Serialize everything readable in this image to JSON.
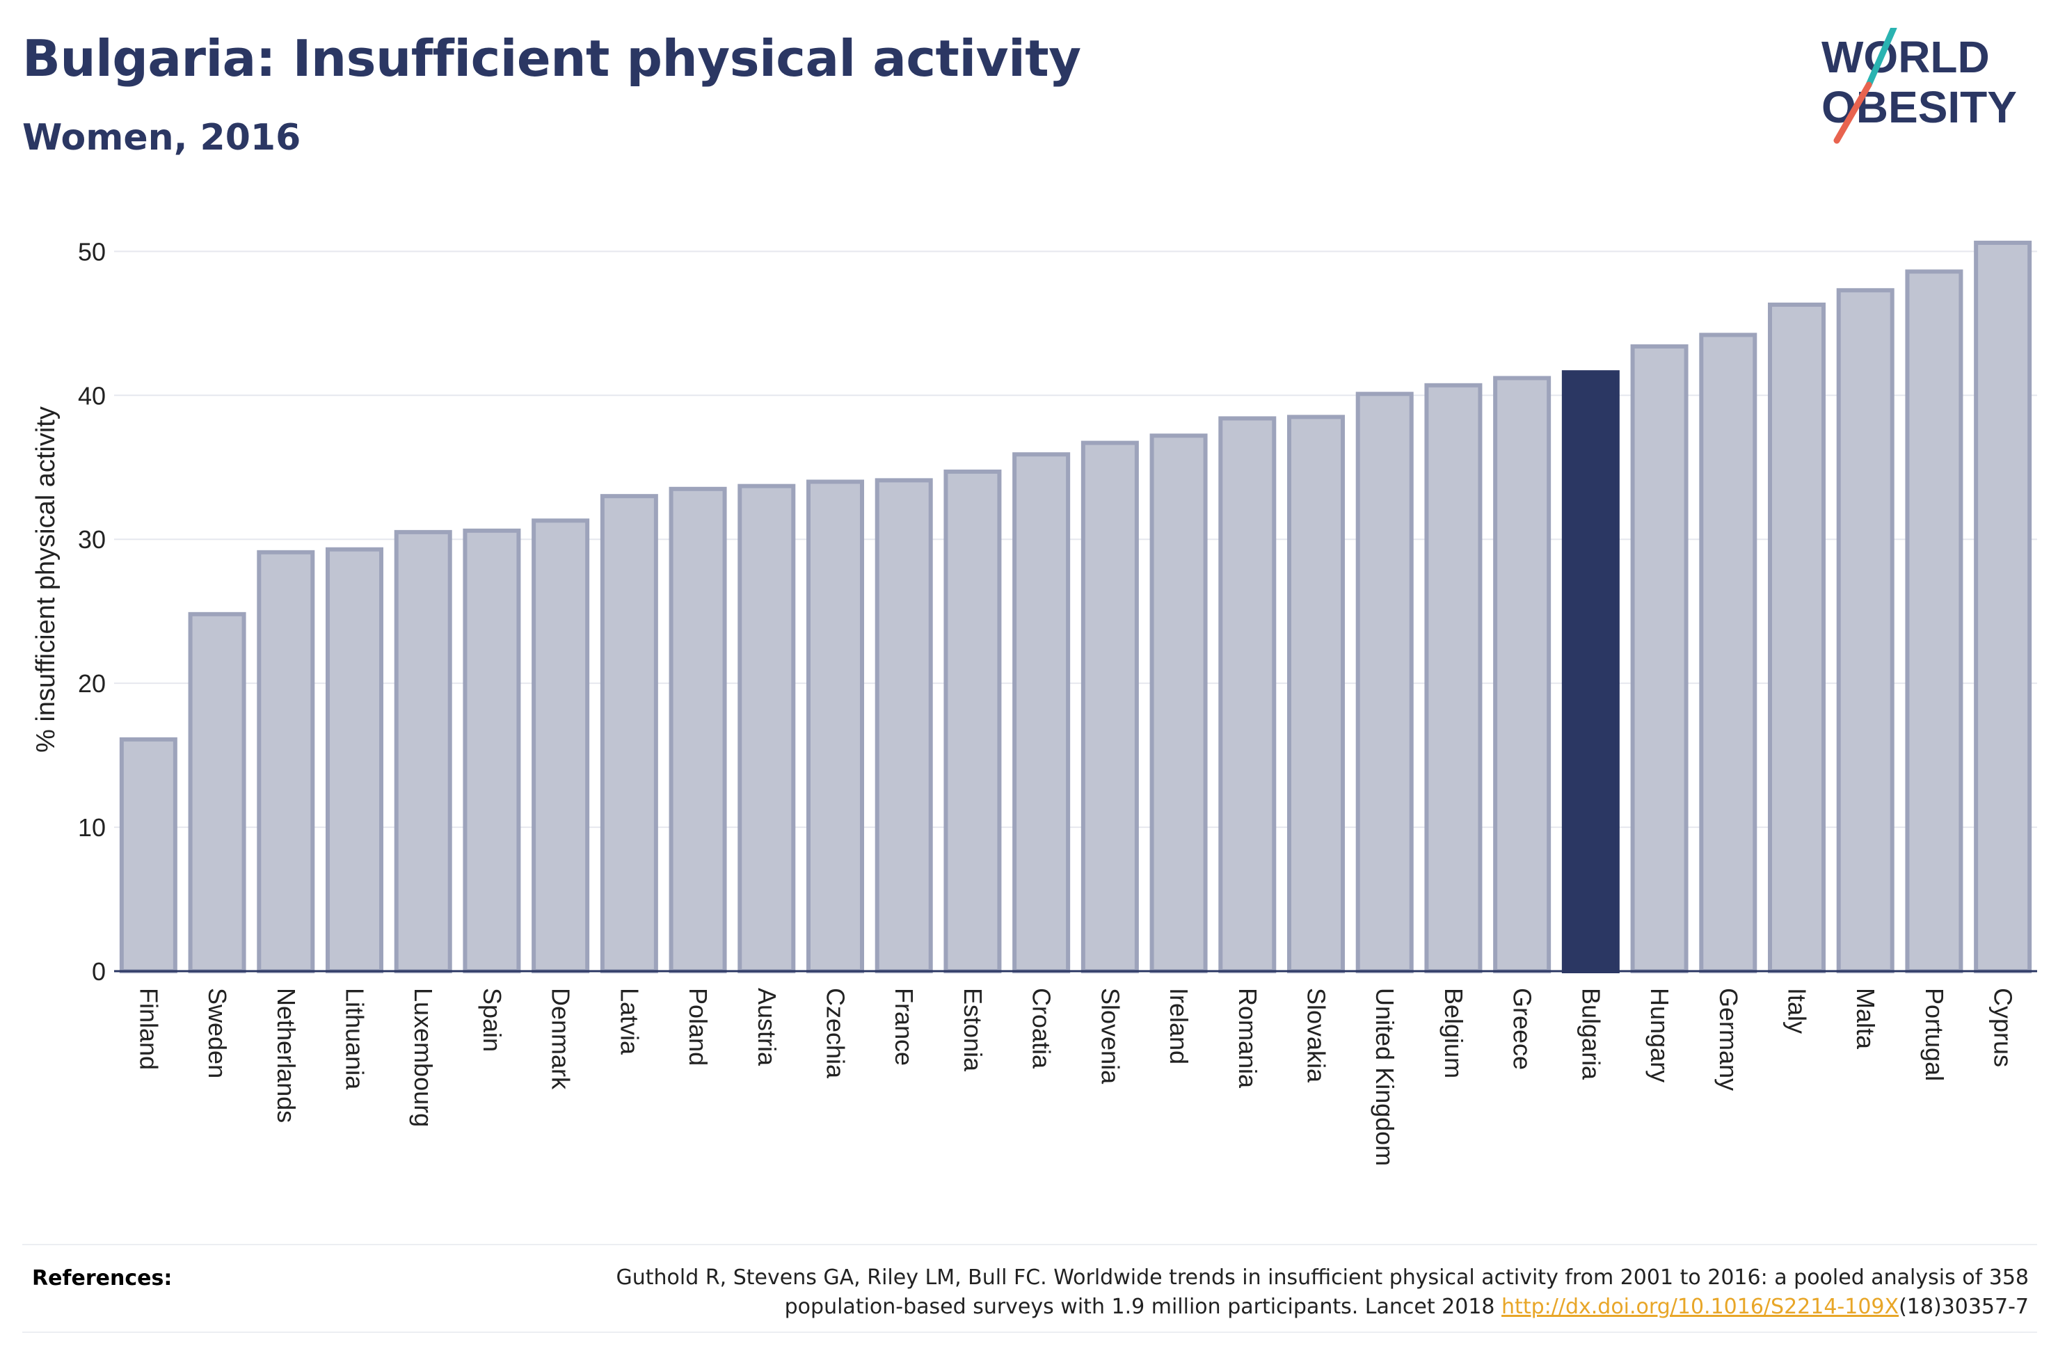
{
  "header": {
    "title": "Bulgaria: Insufficient physical activity",
    "subtitle": "Women, 2016"
  },
  "logo": {
    "line1": "WORLD",
    "line2": "OBESITY",
    "colors": {
      "text": "#2b3763",
      "slash_teal": "#2ab3b1",
      "slash_coral": "#e8634f"
    }
  },
  "chart_data": {
    "type": "bar",
    "ylabel": "% insufficient physical activity",
    "xlabel": "",
    "ylim": [
      0,
      52
    ],
    "yticks": [
      0,
      10,
      20,
      30,
      40,
      50
    ],
    "grid": true,
    "categories": [
      "Finland",
      "Sweden",
      "Netherlands",
      "Lithuania",
      "Luxembourg",
      "Spain",
      "Denmark",
      "Latvia",
      "Poland",
      "Austria",
      "Czechia",
      "France",
      "Estonia",
      "Croatia",
      "Slovenia",
      "Ireland",
      "Romania",
      "Slovakia",
      "United Kingdom",
      "Belgium",
      "Greece",
      "Bulgaria",
      "Hungary",
      "Germany",
      "Italy",
      "Malta",
      "Portugal",
      "Cyprus"
    ],
    "values": [
      16.1,
      24.8,
      29.1,
      29.3,
      30.5,
      30.6,
      31.3,
      33.0,
      33.5,
      33.7,
      34.0,
      34.1,
      34.7,
      35.9,
      36.7,
      37.2,
      38.4,
      38.5,
      40.1,
      40.7,
      41.2,
      41.6,
      43.4,
      44.2,
      46.3,
      47.3,
      48.6,
      50.6
    ],
    "highlight": "Bulgaria",
    "colors": {
      "bar": "#c0c4d2",
      "bar_border": "#9da3bb",
      "highlight": "#2b3763"
    }
  },
  "references": {
    "label": "References:",
    "text_line1": "Guthold R, Stevens GA, Riley LM, Bull FC. Worldwide trends in insufficient physical activity from 2001 to 2016: a pooled analysis of 358",
    "text_line2_before": "population-based surveys with 1.9 million participants. Lancet 2018 ",
    "link": "http://dx.doi.org/10.1016/S2214-109X",
    "text_line2_after": "(18)30357-7"
  }
}
